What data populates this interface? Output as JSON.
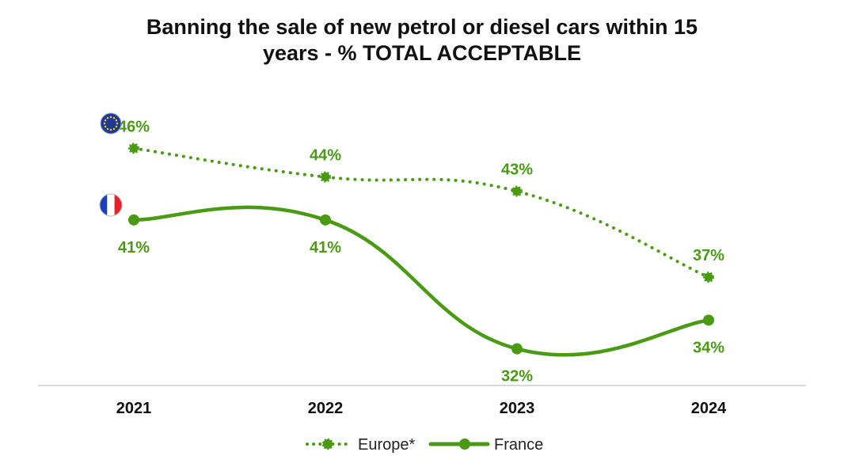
{
  "chart_data": {
    "type": "line",
    "title_line1": "Banning the sale of new petrol or diesel cars within 15",
    "title_line2": "years - % TOTAL ACCEPTABLE",
    "categories": [
      "2021",
      "2022",
      "2023",
      "2024"
    ],
    "ylim": [
      28,
      50
    ],
    "series": [
      {
        "name": "Europe*",
        "style": "dotted",
        "values": [
          46,
          44,
          43,
          37
        ],
        "labels": [
          "46%",
          "44%",
          "43%",
          "37%"
        ],
        "flag_icon": "eu-flag-icon",
        "label_position": "above"
      },
      {
        "name": "France",
        "style": "solid",
        "values": [
          41,
          41,
          32,
          34
        ],
        "labels": [
          "41%",
          "41%",
          "32%",
          "34%"
        ],
        "flag_icon": "france-flag-icon",
        "label_position": "below"
      }
    ],
    "legend": [
      {
        "name": "Europe*",
        "style": "dotted"
      },
      {
        "name": "France",
        "style": "solid"
      }
    ],
    "legend_position": "bottom-center",
    "colors": {
      "line": "#4a9a14",
      "label": "#4a9a14",
      "axis": "#cccccc",
      "eu_blue": "#1f3a93",
      "eu_star": "#f6d31d",
      "fr_blue": "#1d3fbf",
      "fr_red": "#e8202a"
    }
  }
}
